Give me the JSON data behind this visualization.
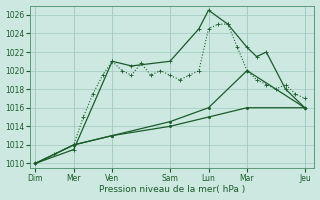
{
  "background_color": "#cce8e0",
  "grid_color": "#a8cfc8",
  "line_color": "#1a5c2a",
  "xlabel": "Pression niveau de la mer( hPa )",
  "ylim": [
    1009.5,
    1027
  ],
  "yticks": [
    1010,
    1012,
    1014,
    1016,
    1018,
    1020,
    1022,
    1024,
    1026
  ],
  "xtick_labels": [
    "Dim",
    "Mer",
    "Ven",
    "Sam",
    "Lun",
    "Mar",
    "Jeu"
  ],
  "xtick_positions": [
    0,
    4,
    8,
    14,
    18,
    22,
    28
  ],
  "xlim": [
    -0.5,
    29
  ],
  "series": [
    {
      "x": [
        0,
        2,
        4,
        5,
        6,
        7,
        8,
        9,
        10,
        11,
        12,
        13,
        14,
        15,
        16,
        17,
        18,
        19,
        20,
        21,
        22,
        23,
        24,
        25,
        26,
        27,
        28
      ],
      "y": [
        1010,
        1011,
        1012,
        1015,
        1017.5,
        1019.5,
        1021,
        1020,
        1019.5,
        1020.8,
        1019.5,
        1020,
        1019.5,
        1019,
        1019.5,
        1020,
        1024.5,
        1025,
        1025,
        1022.5,
        1020,
        1019,
        1018.5,
        1018,
        1018.5,
        1017.5,
        1017
      ],
      "linestyle": ":",
      "linewidth": 0.8,
      "marker": "+",
      "markersize": 3
    },
    {
      "x": [
        0,
        4,
        8,
        10,
        14,
        17,
        18,
        20,
        22,
        23,
        24,
        26,
        28
      ],
      "y": [
        1010,
        1011.5,
        1021,
        1020.5,
        1021,
        1024.5,
        1026.5,
        1025,
        1022.5,
        1021.5,
        1022,
        1018,
        1016
      ],
      "linestyle": "-",
      "linewidth": 0.9,
      "marker": "+",
      "markersize": 3.5
    },
    {
      "x": [
        0,
        4,
        8,
        14,
        18,
        22,
        28
      ],
      "y": [
        1010,
        1012,
        1013,
        1014.5,
        1016,
        1020,
        1016
      ],
      "linestyle": "-",
      "linewidth": 0.9,
      "marker": ".",
      "markersize": 3
    },
    {
      "x": [
        0,
        4,
        8,
        14,
        18,
        22,
        28
      ],
      "y": [
        1010,
        1012,
        1013,
        1014,
        1015,
        1016,
        1016
      ],
      "linestyle": "-",
      "linewidth": 0.9,
      "marker": ".",
      "markersize": 3
    }
  ]
}
